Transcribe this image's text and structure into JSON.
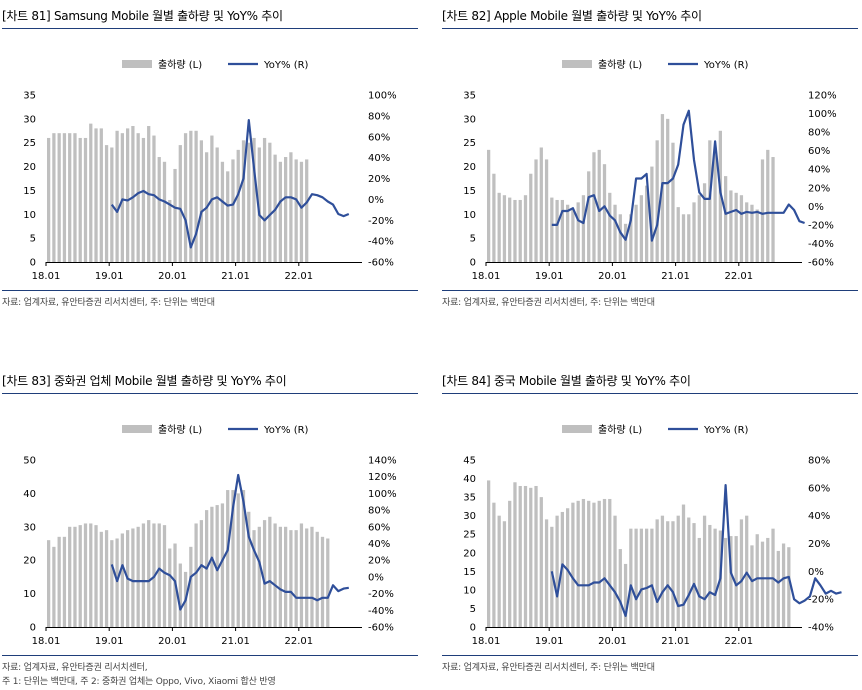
{
  "colors": {
    "bar": "#bfbfbf",
    "line": "#2f4f9a",
    "rule": "#1f3e7a"
  },
  "panels": [
    {
      "title": "[차트 81] Samsung Mobile 월별 출하량 및 YoY% 추이",
      "source": "자료: 업계자료, 유안타증권 리서치센터, 주: 단위는 백만대",
      "source2": ""
    },
    {
      "title": "[차트 82] Apple Mobile 월별 출하량 및 YoY% 추이",
      "source": "자료: 업계자료, 유안타증권 리서치센터, 주: 단위는 백만대",
      "source2": ""
    },
    {
      "title": "[차트 83] 중화권 업체 Mobile 월별 출하량 및 YoY% 추이",
      "source": "자료: 업계자료, 유안타증권 리서치센터,",
      "source2": "주 1: 단위는 백만대, 주 2: 중화권 업체는 Oppo, Vivo, Xiaomi 합산 반영"
    },
    {
      "title": "[차트 84] 중국 Mobile 월별 출하량 및 YoY% 추이",
      "source": "자료: 업계자료, 유안타증권 리서치센터, 주: 단위는 백만대",
      "source2": ""
    }
  ],
  "chart_data": [
    {
      "type": "bar+line",
      "legend": [
        "출하량 (L)",
        "YoY% (R)"
      ],
      "x_ticks": [
        "18.01",
        "19.01",
        "20.01",
        "21.01",
        "22.01"
      ],
      "yl": [
        0,
        35,
        5
      ],
      "yr": [
        -60,
        100,
        20
      ],
      "yl_ticks": [
        "0",
        "5",
        "10",
        "15",
        "20",
        "25",
        "30",
        "35"
      ],
      "yr_ticks": [
        "-60%",
        "-40%",
        "-20%",
        "0%",
        "20%",
        "40%",
        "60%",
        "80%",
        "100%"
      ],
      "bars": [
        26,
        27,
        27,
        27,
        27,
        27,
        26,
        26,
        29,
        28,
        28,
        24.5,
        24,
        27.5,
        27,
        28,
        28.5,
        27,
        26,
        28.5,
        26.5,
        22,
        21,
        13,
        19.5,
        24.5,
        27,
        27.5,
        27.5,
        25.5,
        23,
        26.5,
        24,
        21,
        19,
        21.5,
        23.5,
        25.5,
        25,
        26,
        24,
        26,
        25,
        22.5,
        21,
        22,
        23,
        21.5,
        21,
        21.5
      ],
      "yoy_start": 12,
      "yoy": [
        -5,
        -12,
        0,
        -1,
        2,
        6,
        8,
        5,
        4,
        0,
        -2,
        -5,
        -8,
        -9,
        -20,
        -46,
        -33,
        -12,
        -8,
        0,
        2,
        -2,
        -6,
        -5,
        5,
        20,
        76,
        30,
        -15,
        -20,
        -15,
        -10,
        -2,
        2,
        2,
        0,
        -8,
        -3,
        5,
        4,
        2,
        -2,
        -5,
        -14,
        -16,
        -14
      ]
    },
    {
      "type": "bar+line",
      "legend": [
        "출하량 (L)",
        "YoY% (R)"
      ],
      "x_ticks": [
        "18.01",
        "19.01",
        "20.01",
        "21.01",
        "22.01"
      ],
      "yl": [
        0,
        35,
        5
      ],
      "yr": [
        -60,
        120,
        20
      ],
      "yl_ticks": [
        "0",
        "5",
        "10",
        "15",
        "20",
        "25",
        "30",
        "35"
      ],
      "yr_ticks": [
        "-60%",
        "-40%",
        "-20%",
        "0%",
        "20%",
        "40%",
        "60%",
        "80%",
        "100%",
        "120%"
      ],
      "bars": [
        23.5,
        18.5,
        14.5,
        14,
        13.5,
        13,
        13,
        14,
        18.5,
        21.5,
        24,
        21.5,
        13.5,
        13,
        13,
        12,
        11,
        12.5,
        14,
        19,
        23,
        23.5,
        20.5,
        14.5,
        12,
        10,
        8,
        10,
        12,
        14,
        16,
        20,
        25.5,
        31,
        30,
        25,
        11.5,
        10,
        10,
        12.5,
        14,
        16.5,
        25.5,
        24,
        27.5,
        18,
        15,
        14.5,
        14,
        12.5,
        12,
        11,
        21.5,
        23.5,
        22
      ],
      "yoy_start": 12,
      "yoy": [
        -20,
        -20,
        -5,
        -5,
        -2,
        -15,
        -18,
        10,
        12,
        -5,
        0,
        -10,
        -15,
        -28,
        -36,
        -15,
        30,
        30,
        35,
        -37,
        -20,
        25,
        25,
        30,
        45,
        88,
        103,
        50,
        15,
        8,
        8,
        70,
        15,
        -8,
        -6,
        -4,
        -8,
        -6,
        -7,
        -6,
        -8,
        -7,
        -7,
        -7,
        -7,
        2,
        -4,
        -16,
        -18
      ]
    },
    {
      "type": "bar+line",
      "legend": [
        "출하량 (L)",
        "YoY% (R)"
      ],
      "x_ticks": [
        "18.01",
        "19.01",
        "20.01",
        "21.01",
        "22.01"
      ],
      "yl": [
        0,
        50,
        10
      ],
      "yr": [
        -60,
        140,
        20
      ],
      "yl_ticks": [
        "0",
        "10",
        "20",
        "30",
        "40",
        "50"
      ],
      "yr_ticks": [
        "-60%",
        "-40%",
        "-20%",
        "0%",
        "20%",
        "40%",
        "60%",
        "80%",
        "100%",
        "120%",
        "140%"
      ],
      "bars": [
        26,
        24,
        27,
        27,
        30,
        30,
        30.5,
        31,
        31,
        30.5,
        28.5,
        29,
        26,
        26.5,
        28,
        29,
        29.5,
        30,
        31,
        32,
        31,
        31,
        30.5,
        23.5,
        25,
        19,
        16.5,
        24,
        31,
        32,
        35,
        36,
        36.5,
        37,
        41,
        41,
        40,
        41,
        34.5,
        29,
        30,
        32,
        33,
        31,
        30,
        30,
        29,
        29,
        31,
        29.5,
        30,
        28.5,
        27,
        26.5
      ],
      "yoy_start": 12,
      "yoy": [
        15,
        -5,
        14,
        -2,
        -5,
        -5,
        -5,
        -5,
        0,
        10,
        5,
        2,
        -5,
        -39,
        -28,
        0,
        5,
        14,
        10,
        23,
        8,
        20,
        32,
        83,
        122,
        90,
        48,
        32,
        18,
        -8,
        -5,
        -10,
        -15,
        -18,
        -18,
        -25,
        -25,
        -25,
        -25,
        -28,
        -25,
        -25,
        -10,
        -17,
        -14,
        -13
      ]
    },
    {
      "type": "bar+line",
      "legend": [
        "출하량 (L)",
        "YoY% (R)"
      ],
      "x_ticks": [
        "18.01",
        "19.01",
        "20.01",
        "21.01",
        "22.01"
      ],
      "yl": [
        0,
        45,
        5
      ],
      "yr": [
        -40,
        80,
        20
      ],
      "yl_ticks": [
        "0",
        "5",
        "10",
        "15",
        "20",
        "25",
        "30",
        "35",
        "40",
        "45"
      ],
      "yr_ticks": [
        "-40%",
        "-20%",
        "0%",
        "20%",
        "40%",
        "60%",
        "80%"
      ],
      "bars": [
        39.5,
        33.5,
        30,
        28.5,
        34,
        39,
        38,
        38,
        37.5,
        38,
        35,
        29,
        27,
        30,
        31,
        32,
        33.5,
        34,
        34.5,
        34,
        33.5,
        34,
        34.5,
        34.5,
        30,
        21,
        17,
        26.5,
        26.5,
        26.5,
        26.5,
        26.5,
        29,
        30,
        28.5,
        28.5,
        30,
        33,
        29.5,
        28,
        24,
        30,
        27.5,
        26.5,
        26,
        24,
        24.5,
        24.5,
        29,
        30,
        22,
        25,
        23,
        24,
        26.5,
        20.5,
        22.5,
        21.5
      ],
      "yoy_start": 12,
      "yoy": [
        0,
        -18,
        5,
        1,
        -5,
        -10,
        -10,
        -10,
        -8,
        -8,
        -5,
        -10,
        -15,
        -22,
        -32,
        -10,
        -20,
        -13,
        -12,
        -10,
        -22,
        -15,
        -10,
        -15,
        -25,
        -24,
        -17,
        -9,
        -18,
        -20,
        -15,
        -17,
        -5,
        62,
        -1,
        -10,
        -7,
        -1,
        -7,
        -5,
        -5,
        -5,
        -5,
        -8,
        -5,
        -4,
        -20,
        -23,
        -21,
        -18,
        -5,
        -10,
        -16,
        -14,
        -16,
        -15
      ]
    }
  ]
}
